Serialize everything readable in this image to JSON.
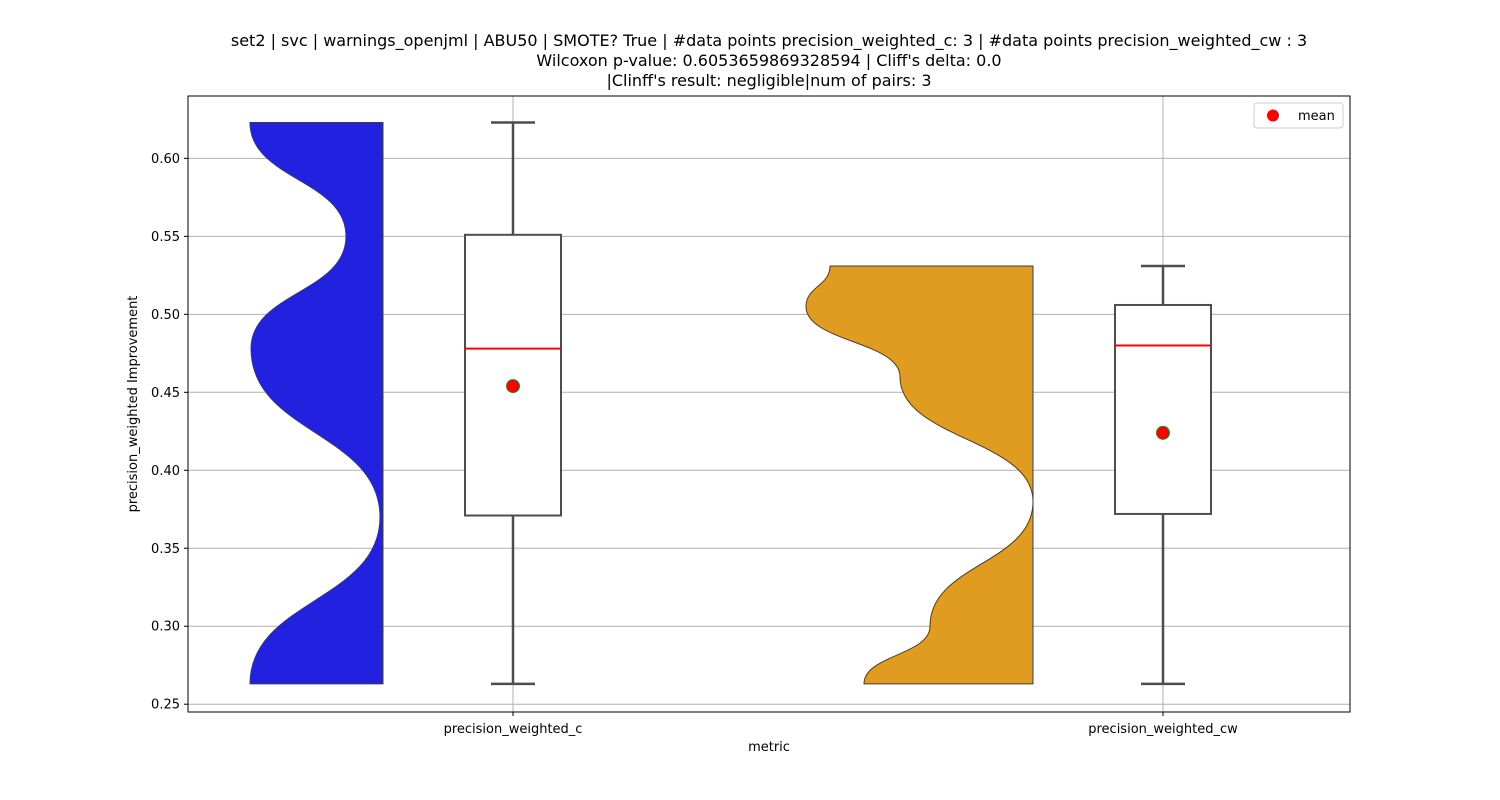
{
  "chart_data": {
    "type": "violin+box",
    "title": [
      "set2 | svc | warnings_openjml | ABU50 | SMOTE? True | #data points precision_weighted_c: 3 | #data points precision_weighted_cw : 3",
      "Wilcoxon p-value: 0.6053659869328594 | Cliff's delta: 0.0",
      "|Clinff's result: negligible|num of pairs: 3"
    ],
    "xlabel": "metric",
    "ylabel": "precision_weighted Improvement",
    "ylim": [
      0.245,
      0.64
    ],
    "yticks": [
      "0.25",
      "0.30",
      "0.35",
      "0.40",
      "0.45",
      "0.50",
      "0.55",
      "0.60"
    ],
    "grid": true,
    "legend": {
      "position": "top-right",
      "entries": [
        {
          "label": "mean",
          "color": "#ff0000"
        }
      ]
    },
    "categories": [
      "precision_weighted_c",
      "precision_weighted_cw"
    ],
    "series": [
      {
        "category": "precision_weighted_c",
        "violin_color": "#2121df",
        "violin_side": "left",
        "density_peaks": [
          0.623,
          0.55,
          0.478,
          0.37,
          0.263
        ],
        "box": {
          "min": 0.263,
          "q1": 0.371,
          "median": 0.478,
          "q3": 0.551,
          "max": 0.623,
          "mean": 0.454
        }
      },
      {
        "category": "precision_weighted_cw",
        "violin_color": "#e09c21",
        "violin_side": "left",
        "density_peaks": [
          0.531,
          0.505,
          0.38,
          0.263
        ],
        "box": {
          "min": 0.263,
          "q1": 0.372,
          "median": 0.48,
          "q3": 0.506,
          "max": 0.531,
          "mean": 0.424
        }
      }
    ],
    "colors": {
      "median": "#ff0000",
      "mean_marker": "#ff0000",
      "mean_edge": "#228b22",
      "box_edge": "#4d4d4d",
      "grid": "#b0b0b0"
    }
  }
}
